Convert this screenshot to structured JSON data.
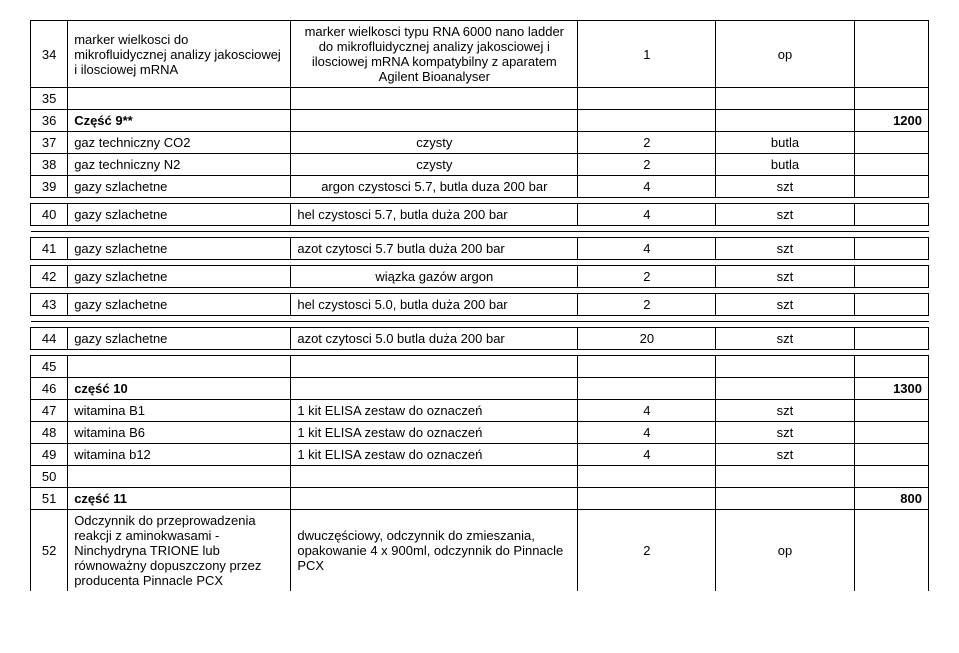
{
  "rows": [
    {
      "num": "34",
      "name": "marker wielkosci do mikrofluidycznej analizy jakosciowej i ilosciowej mRNA",
      "desc": "marker wielkosci typu RNA 6000 nano ladder do mikrofluidycznej analizy jakosciowej i ilosciowej mRNA kompatybilny z aparatem Agilent Bioanalyser",
      "qty": "1",
      "unit": "op",
      "extra": ""
    },
    {
      "num": "35",
      "name": "",
      "desc": "",
      "qty": "",
      "unit": "",
      "extra": ""
    },
    {
      "num": "36",
      "name": "Część 9**",
      "desc": "",
      "qty": "",
      "unit": "",
      "extra": "1200",
      "bold": true
    },
    {
      "num": "37",
      "name": "gaz techniczny CO2",
      "desc": "czysty",
      "qty": "2",
      "unit": "butla",
      "extra": ""
    },
    {
      "num": "38",
      "name": "gaz techniczny N2",
      "desc": "czysty",
      "qty": "2",
      "unit": "butla",
      "extra": ""
    },
    {
      "num": "39",
      "name": "gazy szlachetne",
      "desc": "argon czystosci 5.7, butla duza 200 bar",
      "qty": "4",
      "unit": "szt",
      "extra": ""
    },
    {
      "num": "40",
      "name": "gazy szlachetne",
      "desc": "hel czystosci 5.7, butla duża 200 bar",
      "qty": "4",
      "unit": "szt",
      "extra": "",
      "descLeft": true,
      "spaced": true
    },
    {
      "num": "41",
      "name": "gazy szlachetne",
      "desc": "azot czytosci 5.7 butla duża  200 bar",
      "qty": "4",
      "unit": "szt",
      "extra": "",
      "descLeft": true,
      "spaced": true
    },
    {
      "num": "42",
      "name": "gazy szlachetne",
      "desc": "wiązka gazów argon",
      "qty": "2",
      "unit": "szt",
      "extra": ""
    },
    {
      "num": "43",
      "name": "gazy szlachetne",
      "desc": "hel czystosci 5.0, butla duża 200 bar",
      "qty": "2",
      "unit": "szt",
      "extra": "",
      "descLeft": true,
      "spaced": true
    },
    {
      "num": "44",
      "name": "gazy szlachetne",
      "desc": "azot czytosci 5.0 butla duża  200 bar",
      "qty": "20",
      "unit": "szt",
      "extra": "",
      "descLeft": true,
      "spaced": true
    },
    {
      "num": "45",
      "name": "",
      "desc": "",
      "qty": "",
      "unit": "",
      "extra": ""
    },
    {
      "num": "46",
      "name": "część 10",
      "desc": "",
      "qty": "",
      "unit": "",
      "extra": "1300",
      "bold": true
    },
    {
      "num": "47",
      "name": "witamina B1",
      "desc": "1 kit ELISA zestaw do oznaczeń",
      "qty": "4",
      "unit": "szt",
      "extra": "",
      "descLeft": true
    },
    {
      "num": "48",
      "name": "witamina B6",
      "desc": "1 kit ELISA zestaw do oznaczeń",
      "qty": "4",
      "unit": "szt",
      "extra": "",
      "descLeft": true
    },
    {
      "num": "49",
      "name": "witamina b12",
      "desc": "1 kit ELISA zestaw do oznaczeń",
      "qty": "4",
      "unit": "szt",
      "extra": "",
      "descLeft": true
    },
    {
      "num": "50",
      "name": "",
      "desc": "",
      "qty": "",
      "unit": "",
      "extra": ""
    },
    {
      "num": "51",
      "name": "część 11",
      "desc": "",
      "qty": "",
      "unit": "",
      "extra": "800",
      "bold": true
    },
    {
      "num": "52",
      "name": "Odczynnik do przeprowadzenia reakcji z aminokwasami - Ninchydryna TRIONE lub równoważny dopuszczony przez producenta Pinnacle PCX",
      "desc": "dwuczęściowy, odczynnik do zmieszania, opakowanie 4 x 900ml, odczynnik do Pinnacle PCX",
      "qty": "2",
      "unit": "op",
      "extra": "",
      "descLeft": true,
      "cut": true
    }
  ],
  "table": {
    "border_color": "#000000",
    "font_size": 13,
    "background": "#ffffff"
  }
}
